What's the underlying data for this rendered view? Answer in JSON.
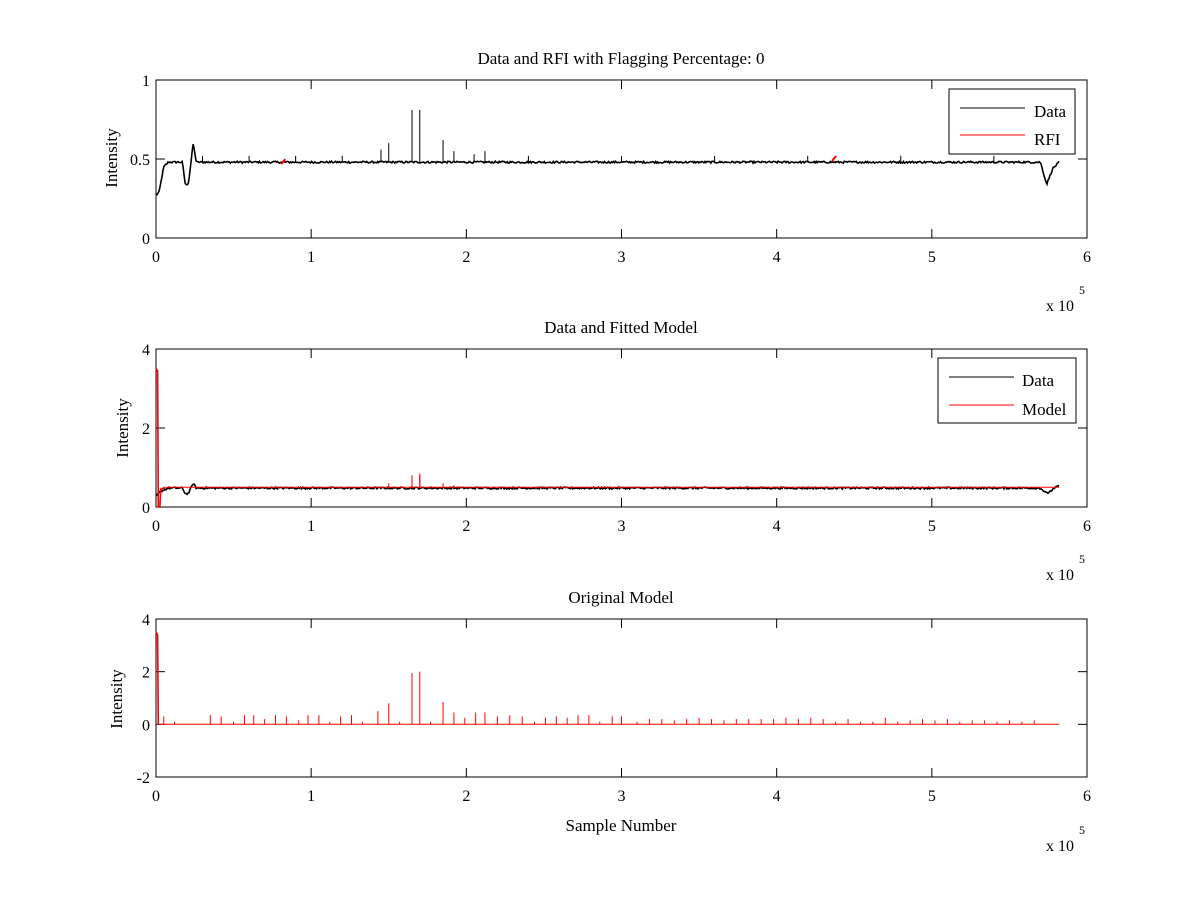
{
  "figure": {
    "background": "#ffffff"
  },
  "colors": {
    "data": "#000000",
    "rfi": "#ff0000",
    "axes": "#000000"
  },
  "chart_data": [
    {
      "type": "line",
      "title": "Data and RFI with Flagging Percentage: 0",
      "xlabel": "",
      "ylabel": "Intensity",
      "xlim": [
        0,
        600000
      ],
      "ylim": [
        0,
        1
      ],
      "xticks": [
        0,
        1,
        2,
        3,
        4,
        5,
        6
      ],
      "xtick_labels": [
        "0",
        "1",
        "2",
        "3",
        "4",
        "5",
        "6"
      ],
      "yticks": [
        0,
        0.5,
        1
      ],
      "ytick_labels": [
        "0",
        "0.5",
        "1"
      ],
      "x_multiplier": {
        "text": "x 10",
        "exponent": "5"
      },
      "legend": {
        "position": "top-right",
        "entries": [
          "Data",
          "RFI"
        ]
      },
      "series": [
        {
          "name": "Data",
          "color": "#000000",
          "baseline": 0.48,
          "x_end": 582000,
          "envelope": [
            [
              0,
              0.27
            ],
            [
              2000,
              0.29
            ],
            [
              5000,
              0.45
            ],
            [
              8000,
              0.48
            ],
            [
              17000,
              0.48
            ],
            [
              19000,
              0.33
            ],
            [
              21000,
              0.35
            ],
            [
              24000,
              0.6
            ],
            [
              26000,
              0.48
            ],
            [
              570000,
              0.48
            ],
            [
              574000,
              0.34
            ],
            [
              578000,
              0.44
            ],
            [
              582000,
              0.48
            ]
          ],
          "spikes": [
            [
              30000,
              0.52
            ],
            [
              60000,
              0.52
            ],
            [
              90000,
              0.52
            ],
            [
              120000,
              0.52
            ],
            [
              145000,
              0.56
            ],
            [
              150000,
              0.6
            ],
            [
              165000,
              0.81
            ],
            [
              170000,
              0.81
            ],
            [
              185000,
              0.62
            ],
            [
              192000,
              0.55
            ],
            [
              205000,
              0.53
            ],
            [
              212000,
              0.55
            ],
            [
              240000,
              0.52
            ],
            [
              300000,
              0.52
            ],
            [
              360000,
              0.52
            ],
            [
              420000,
              0.52
            ],
            [
              480000,
              0.52
            ],
            [
              540000,
              0.52
            ]
          ]
        },
        {
          "name": "RFI",
          "color": "#ff0000",
          "points": [
            [
              82000,
              0.48
            ],
            [
              437000,
              0.5
            ]
          ]
        }
      ]
    },
    {
      "type": "line",
      "title": "Data and Fitted Model",
      "xlabel": "",
      "ylabel": "Intensity",
      "xlim": [
        0,
        600000
      ],
      "ylim": [
        0,
        4
      ],
      "xticks": [
        0,
        1,
        2,
        3,
        4,
        5,
        6
      ],
      "xtick_labels": [
        "0",
        "1",
        "2",
        "3",
        "4",
        "5",
        "6"
      ],
      "yticks": [
        0,
        2,
        4
      ],
      "ytick_labels": [
        "0",
        "2",
        "4"
      ],
      "x_multiplier": {
        "text": "x 10",
        "exponent": "5"
      },
      "legend": {
        "position": "top-right",
        "entries": [
          "Data",
          "Model"
        ]
      },
      "series": [
        {
          "name": "Data",
          "color": "#000000",
          "baseline": 0.48,
          "x_end": 582000,
          "envelope": [
            [
              0,
              0.27
            ],
            [
              3000,
              0.4
            ],
            [
              8000,
              0.48
            ],
            [
              17000,
              0.48
            ],
            [
              19000,
              0.33
            ],
            [
              21000,
              0.35
            ],
            [
              24000,
              0.6
            ],
            [
              26000,
              0.48
            ],
            [
              570000,
              0.48
            ],
            [
              574000,
              0.34
            ],
            [
              578000,
              0.44
            ],
            [
              582000,
              0.55
            ]
          ],
          "spikes": [
            [
              165000,
              0.8
            ],
            [
              170000,
              0.8
            ]
          ]
        },
        {
          "name": "Model",
          "color": "#ff0000",
          "baseline": 0.5,
          "x_end": 582000,
          "initial": [
            [
              0,
              3.5
            ],
            [
              1000,
              3.45
            ],
            [
              1500,
              0.0
            ],
            [
              2500,
              0.0
            ],
            [
              3000,
              0.45
            ],
            [
              6000,
              0.5
            ]
          ],
          "spikes": [
            [
              150000,
              0.6
            ],
            [
              165000,
              0.8
            ],
            [
              170000,
              0.85
            ],
            [
              185000,
              0.6
            ],
            [
              192000,
              0.55
            ],
            [
              212000,
              0.52
            ]
          ]
        }
      ]
    },
    {
      "type": "line",
      "title": "Original Model",
      "xlabel": "Sample Number",
      "ylabel": "Intensity",
      "xlim": [
        0,
        600000
      ],
      "ylim": [
        -2,
        4
      ],
      "xticks": [
        0,
        1,
        2,
        3,
        4,
        5,
        6
      ],
      "xtick_labels": [
        "0",
        "1",
        "2",
        "3",
        "4",
        "5",
        "6"
      ],
      "yticks": [
        -2,
        0,
        2,
        4
      ],
      "ytick_labels": [
        "-2",
        "0",
        "2",
        "4"
      ],
      "x_multiplier": {
        "text": "x 10",
        "exponent": "5"
      },
      "series": [
        {
          "name": "Model",
          "color": "#ff0000",
          "baseline": 0.0,
          "x_end": 582000,
          "initial": [
            [
              0,
              3.5
            ],
            [
              1000,
              3.4
            ],
            [
              1500,
              0.0
            ]
          ],
          "spikes": [
            [
              5000,
              0.3
            ],
            [
              12000,
              0.1
            ],
            [
              35000,
              0.35
            ],
            [
              42000,
              0.3
            ],
            [
              50000,
              0.1
            ],
            [
              57000,
              0.35
            ],
            [
              63000,
              0.35
            ],
            [
              70000,
              0.2
            ],
            [
              77000,
              0.35
            ],
            [
              84000,
              0.3
            ],
            [
              92000,
              0.15
            ],
            [
              98000,
              0.35
            ],
            [
              105000,
              0.35
            ],
            [
              112000,
              0.1
            ],
            [
              119000,
              0.3
            ],
            [
              126000,
              0.35
            ],
            [
              133000,
              0.1
            ],
            [
              143000,
              0.5
            ],
            [
              150000,
              0.8
            ],
            [
              157000,
              0.1
            ],
            [
              165000,
              1.95
            ],
            [
              170000,
              2.0
            ],
            [
              177000,
              0.1
            ],
            [
              185000,
              0.85
            ],
            [
              192000,
              0.45
            ],
            [
              199000,
              0.25
            ],
            [
              206000,
              0.45
            ],
            [
              212000,
              0.45
            ],
            [
              220000,
              0.3
            ],
            [
              228000,
              0.35
            ],
            [
              236000,
              0.3
            ],
            [
              244000,
              0.1
            ],
            [
              251000,
              0.25
            ],
            [
              258000,
              0.3
            ],
            [
              265000,
              0.25
            ],
            [
              272000,
              0.35
            ],
            [
              279000,
              0.35
            ],
            [
              286000,
              0.1
            ],
            [
              294000,
              0.3
            ],
            [
              300000,
              0.3
            ],
            [
              310000,
              0.1
            ],
            [
              318000,
              0.2
            ],
            [
              326000,
              0.2
            ],
            [
              334000,
              0.15
            ],
            [
              342000,
              0.2
            ],
            [
              350000,
              0.25
            ],
            [
              358000,
              0.2
            ],
            [
              366000,
              0.15
            ],
            [
              374000,
              0.2
            ],
            [
              382000,
              0.2
            ],
            [
              390000,
              0.2
            ],
            [
              398000,
              0.2
            ],
            [
              406000,
              0.25
            ],
            [
              414000,
              0.2
            ],
            [
              422000,
              0.25
            ],
            [
              430000,
              0.2
            ],
            [
              438000,
              0.1
            ],
            [
              446000,
              0.2
            ],
            [
              454000,
              0.1
            ],
            [
              462000,
              0.1
            ],
            [
              470000,
              0.25
            ],
            [
              478000,
              0.1
            ],
            [
              486000,
              0.15
            ],
            [
              494000,
              0.2
            ],
            [
              502000,
              0.15
            ],
            [
              510000,
              0.2
            ],
            [
              518000,
              0.1
            ],
            [
              526000,
              0.15
            ],
            [
              534000,
              0.15
            ],
            [
              542000,
              0.1
            ],
            [
              550000,
              0.15
            ],
            [
              558000,
              0.1
            ],
            [
              566000,
              0.15
            ]
          ]
        }
      ]
    }
  ]
}
